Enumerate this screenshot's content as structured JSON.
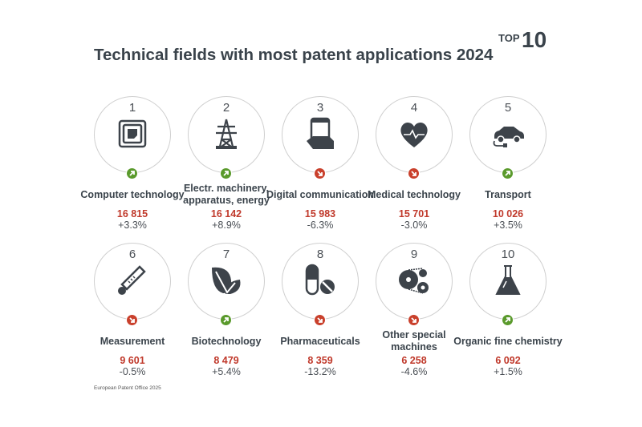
{
  "title": "Technical fields with most patent applications 2024",
  "badge": {
    "top": "TOP",
    "number": "10"
  },
  "source": "European Patent Office 2025",
  "colors": {
    "up": "#5a9a2c",
    "down": "#c9402c",
    "value": "#c0392b",
    "icon": "#3d434a"
  },
  "fields": [
    {
      "rank": "1",
      "name": "Computer technology",
      "value": "16 815",
      "change": "+3.3%",
      "trend": "up",
      "icon": "chip-icon"
    },
    {
      "rank": "2",
      "name": "Electr. machinery, apparatus, energy",
      "value": "16 142",
      "change": "+8.9%",
      "trend": "up",
      "icon": "power-pylon-icon"
    },
    {
      "rank": "3",
      "name": "Digital communication",
      "value": "15 983",
      "change": "-6.3%",
      "trend": "down",
      "icon": "smartphone-hand-icon"
    },
    {
      "rank": "4",
      "name": "Medical technology",
      "value": "15 701",
      "change": "-3.0%",
      "trend": "down",
      "icon": "heart-pulse-icon"
    },
    {
      "rank": "5",
      "name": "Transport",
      "value": "10 026",
      "change": "+3.5%",
      "trend": "up",
      "icon": "electric-car-icon"
    },
    {
      "rank": "6",
      "name": "Measurement",
      "value": "9 601",
      "change": "-0.5%",
      "trend": "down",
      "icon": "thermometer-icon"
    },
    {
      "rank": "7",
      "name": "Biotechnology",
      "value": "8 479",
      "change": "+5.4%",
      "trend": "up",
      "icon": "leaves-icon"
    },
    {
      "rank": "8",
      "name": "Pharmaceuticals",
      "value": "8 359",
      "change": "-13.2%",
      "trend": "down",
      "icon": "pills-icon"
    },
    {
      "rank": "9",
      "name": "Other special machines",
      "value": "6 258",
      "change": "-4.6%",
      "trend": "down",
      "icon": "gears-belt-icon"
    },
    {
      "rank": "10",
      "name": "Organic fine chemistry",
      "value": "6 092",
      "change": "+1.5%",
      "trend": "up",
      "icon": "flask-icon"
    }
  ]
}
